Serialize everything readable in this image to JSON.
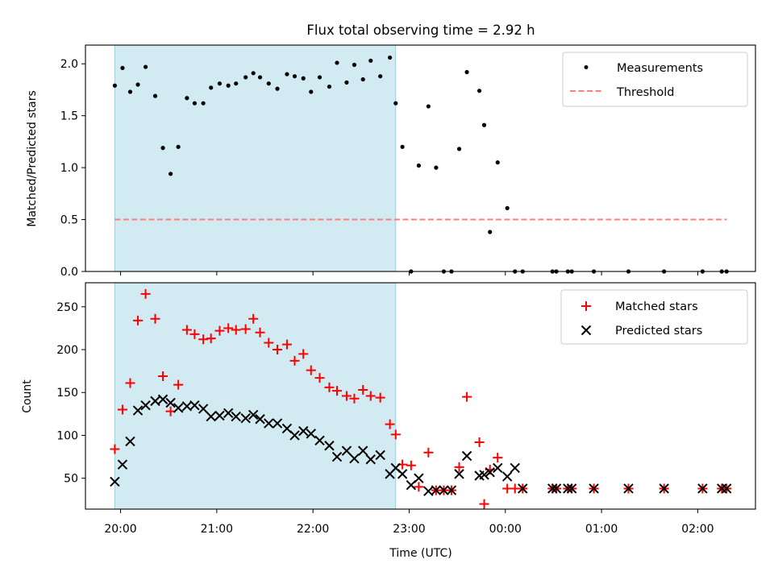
{
  "chart_data": {
    "type": "scatter",
    "title": "Flux total observing time = 2.92 h",
    "xlabel": "Time (UTC)",
    "x_tick_labels": [
      "20:00",
      "21:00",
      "22:00",
      "23:00",
      "00:00",
      "01:00",
      "02:00"
    ],
    "x_tick_hours": [
      20,
      21,
      22,
      23,
      24,
      25,
      26
    ],
    "xlim": [
      19.635,
      26.6
    ],
    "shaded_span": [
      19.94,
      22.86
    ],
    "colors": {
      "shade": "#add8e6",
      "measurements": "#000000",
      "threshold": "#ff7f7f",
      "matched": "#ff0000",
      "predicted": "#000000"
    },
    "panels": [
      {
        "ylabel": "Matched/Predicted stars",
        "ylim": [
          0,
          2.18
        ],
        "y_ticks": [
          0.0,
          0.5,
          1.0,
          1.5,
          2.0
        ],
        "y_tick_labels": [
          "0.0",
          "0.5",
          "1.0",
          "1.5",
          "2.0"
        ],
        "legend": {
          "placement": "top-right",
          "entries": [
            "Measurements",
            "Threshold"
          ]
        },
        "threshold": {
          "name": "Threshold",
          "value": 0.5,
          "x_range": [
            19.94,
            26.3
          ]
        },
        "series": [
          {
            "name": "Measurements",
            "marker": "dot",
            "x": [
              19.94,
              20.02,
              20.1,
              20.18,
              20.26,
              20.36,
              20.44,
              20.52,
              20.6,
              20.69,
              20.77,
              20.86,
              20.94,
              21.03,
              21.12,
              21.2,
              21.3,
              21.38,
              21.45,
              21.54,
              21.63,
              21.73,
              21.81,
              21.9,
              21.98,
              22.07,
              22.17,
              22.25,
              22.35,
              22.43,
              22.52,
              22.6,
              22.7,
              22.8,
              22.86,
              22.93,
              23.02,
              23.1,
              23.2,
              23.28,
              23.36,
              23.44,
              23.52,
              23.6,
              23.73,
              23.78,
              23.84,
              23.92,
              24.02,
              24.1,
              24.18,
              24.49,
              24.53,
              24.65,
              24.69,
              24.92,
              25.28,
              25.65,
              26.05,
              26.25,
              26.3
            ],
            "y": [
              1.79,
              1.96,
              1.73,
              1.8,
              1.97,
              1.69,
              1.19,
              0.94,
              1.2,
              1.67,
              1.62,
              1.62,
              1.77,
              1.81,
              1.79,
              1.81,
              1.87,
              1.91,
              1.87,
              1.81,
              1.76,
              1.9,
              1.88,
              1.86,
              1.73,
              1.87,
              1.78,
              2.01,
              1.82,
              1.99,
              1.85,
              2.03,
              1.88,
              2.06,
              1.62,
              1.2,
              0.0,
              1.02,
              1.59,
              1.0,
              0.0,
              0.0,
              1.18,
              1.92,
              1.74,
              1.41,
              0.38,
              1.05,
              0.61,
              0.0,
              0.0,
              0.0,
              0.0,
              0.0,
              0.0,
              0.0,
              0.0,
              0.0,
              0.0,
              0.0,
              0.0
            ]
          }
        ]
      },
      {
        "ylabel": "Count",
        "ylim": [
          14,
          278
        ],
        "y_ticks": [
          50,
          100,
          150,
          200,
          250
        ],
        "y_tick_labels": [
          "50",
          "100",
          "150",
          "200",
          "250"
        ],
        "legend": {
          "placement": "top-right",
          "entries": [
            "Matched stars",
            "Predicted stars"
          ]
        },
        "series": [
          {
            "name": "Matched stars",
            "marker": "plus",
            "x": [
              19.94,
              20.02,
              20.1,
              20.18,
              20.26,
              20.36,
              20.44,
              20.52,
              20.6,
              20.69,
              20.77,
              20.86,
              20.94,
              21.03,
              21.12,
              21.2,
              21.3,
              21.38,
              21.45,
              21.54,
              21.63,
              21.73,
              21.81,
              21.9,
              21.98,
              22.07,
              22.17,
              22.25,
              22.35,
              22.43,
              22.52,
              22.6,
              22.7,
              22.8,
              22.86,
              22.93,
              23.02,
              23.1,
              23.2,
              23.28,
              23.36,
              23.44,
              23.52,
              23.6,
              23.73,
              23.78,
              23.84,
              23.92,
              24.02,
              24.1,
              24.18,
              24.49,
              24.53,
              24.65,
              24.69,
              24.92,
              25.28,
              25.65,
              26.05,
              26.25,
              26.3
            ],
            "y": [
              84,
              130,
              161,
              234,
              265,
              236,
              169,
              128,
              159,
              223,
              218,
              212,
              213,
              222,
              225,
              223,
              224,
              236,
              220,
              208,
              200,
              206,
              187,
              195,
              176,
              167,
              156,
              152,
              146,
              143,
              153,
              146,
              144,
              113,
              101,
              66,
              65,
              40,
              80,
              36,
              36,
              36,
              63,
              145,
              92,
              20,
              60,
              74,
              38,
              38,
              38,
              38,
              38,
              38,
              38,
              38,
              38,
              38,
              38,
              38,
              38
            ]
          },
          {
            "name": "Predicted stars",
            "marker": "x",
            "x": [
              19.94,
              20.02,
              20.1,
              20.18,
              20.26,
              20.36,
              20.44,
              20.52,
              20.6,
              20.69,
              20.77,
              20.86,
              20.94,
              21.03,
              21.12,
              21.2,
              21.3,
              21.38,
              21.45,
              21.54,
              21.63,
              21.73,
              21.81,
              21.9,
              21.98,
              22.07,
              22.17,
              22.25,
              22.35,
              22.43,
              22.52,
              22.6,
              22.7,
              22.8,
              22.86,
              22.93,
              23.02,
              23.1,
              23.2,
              23.28,
              23.36,
              23.44,
              23.52,
              23.6,
              23.73,
              23.78,
              23.84,
              23.92,
              24.02,
              24.1,
              24.18,
              24.49,
              24.53,
              24.65,
              24.69,
              24.92,
              25.28,
              25.65,
              26.05,
              26.25,
              26.3
            ],
            "y": [
              46,
              66,
              93,
              129,
              135,
              140,
              142,
              138,
              132,
              134,
              135,
              131,
              122,
              123,
              126,
              122,
              120,
              124,
              119,
              114,
              114,
              108,
              100,
              105,
              102,
              94,
              88,
              75,
              82,
              73,
              82,
              72,
              77,
              55,
              62,
              55,
              42,
              50,
              35,
              36,
              36,
              36,
              55,
              76,
              53,
              54,
              57,
              62,
              52,
              62,
              38,
              38,
              38,
              38,
              38,
              38,
              38,
              38,
              38,
              38,
              38
            ]
          }
        ]
      }
    ]
  }
}
